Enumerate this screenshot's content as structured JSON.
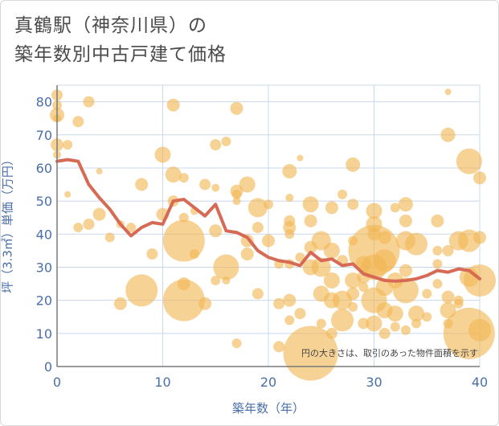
{
  "title_line1": "真鶴駅（神奈川県）の",
  "title_line2": "築年数別中古戸建て価格",
  "colors": {
    "bubble": "#f2b654",
    "line": "#d66a55",
    "grid": "#c9d8ec",
    "axis_text": "#4a6ea8"
  },
  "chart_data": {
    "type": "scatter",
    "xlabel": "築年数（年）",
    "ylabel": "坪（3.3㎡）単価（万円）",
    "xlim": [
      0,
      40
    ],
    "ylim": [
      0,
      85
    ],
    "xticks": [
      "0",
      "10",
      "20",
      "30",
      "40"
    ],
    "yticks": [
      "0",
      "10",
      "20",
      "30",
      "40",
      "50",
      "60",
      "70",
      "80"
    ],
    "note": "円の大きさは、取引のあった物件面積を示す",
    "line": {
      "x": [
        0,
        1,
        2,
        3,
        4,
        5,
        6,
        7,
        8,
        9,
        10,
        11,
        12,
        13,
        14,
        15,
        16,
        17,
        18,
        19,
        20,
        21,
        22,
        23,
        24,
        25,
        26,
        27,
        28,
        29,
        30,
        31,
        32,
        33,
        34,
        35,
        36,
        37,
        38,
        39,
        40
      ],
      "y": [
        62,
        62.5,
        62,
        55,
        51,
        47.5,
        43,
        39.5,
        42,
        43.5,
        43,
        50,
        50.5,
        48,
        45.5,
        49,
        41,
        40.5,
        39,
        35,
        33,
        32,
        31.5,
        30.5,
        34.5,
        32,
        32.5,
        30.5,
        31,
        28,
        27,
        26,
        25.8,
        26,
        26.5,
        27.5,
        29,
        28.5,
        29.5,
        29,
        26.5
      ]
    },
    "bubbles": [
      [
        0,
        82,
        7
      ],
      [
        0,
        79,
        6
      ],
      [
        0,
        76,
        9
      ],
      [
        0,
        75,
        5
      ],
      [
        0,
        67,
        8
      ],
      [
        0,
        64,
        5
      ],
      [
        1,
        67,
        6
      ],
      [
        1,
        52,
        4
      ],
      [
        2,
        74,
        7
      ],
      [
        2,
        42,
        6
      ],
      [
        3,
        80,
        7
      ],
      [
        3,
        43,
        7
      ],
      [
        4,
        59,
        4
      ],
      [
        4,
        46,
        8
      ],
      [
        5,
        39,
        6
      ],
      [
        6,
        19,
        8
      ],
      [
        6,
        43,
        5
      ],
      [
        7,
        42,
        6
      ],
      [
        8,
        55,
        8
      ],
      [
        8,
        23,
        20
      ],
      [
        9,
        34,
        7
      ],
      [
        10,
        46,
        8
      ],
      [
        10,
        64,
        10
      ],
      [
        11,
        79,
        8
      ],
      [
        11,
        58,
        10
      ],
      [
        11,
        50,
        7
      ],
      [
        12,
        38,
        26
      ],
      [
        12,
        20,
        26
      ],
      [
        12,
        25,
        8
      ],
      [
        12,
        57,
        6
      ],
      [
        12,
        45,
        6
      ],
      [
        13,
        34,
        6
      ],
      [
        13,
        47,
        5
      ],
      [
        14,
        55,
        7
      ],
      [
        14,
        19,
        8
      ],
      [
        15,
        67,
        7
      ],
      [
        15,
        41,
        8
      ],
      [
        15,
        26,
        6
      ],
      [
        15,
        54,
        5
      ],
      [
        16,
        68,
        6
      ],
      [
        16,
        30,
        16
      ],
      [
        16,
        26,
        5
      ],
      [
        17,
        78,
        8
      ],
      [
        17,
        53,
        8
      ],
      [
        17,
        52,
        6
      ],
      [
        17,
        50,
        5
      ],
      [
        17,
        7,
        6
      ],
      [
        18,
        55,
        10
      ],
      [
        18,
        34,
        8
      ],
      [
        18,
        38,
        8
      ],
      [
        19,
        48,
        12
      ],
      [
        19,
        42,
        7
      ],
      [
        19,
        22,
        7
      ],
      [
        20,
        49,
        6
      ],
      [
        20,
        38,
        8
      ],
      [
        21,
        31,
        6
      ],
      [
        21,
        19,
        7
      ],
      [
        21,
        6,
        7
      ],
      [
        22,
        59,
        9
      ],
      [
        22,
        51,
        5
      ],
      [
        22,
        44,
        7
      ],
      [
        22,
        42,
        8
      ],
      [
        22,
        40,
        6
      ],
      [
        22,
        31,
        6
      ],
      [
        22,
        20,
        8
      ],
      [
        22,
        14,
        6
      ],
      [
        23,
        16,
        7
      ],
      [
        23,
        33,
        6
      ],
      [
        23,
        63,
        4
      ],
      [
        24,
        49,
        10
      ],
      [
        24,
        44,
        8
      ],
      [
        24,
        36,
        8
      ],
      [
        24,
        30,
        10
      ],
      [
        24,
        4,
        34
      ],
      [
        25,
        38,
        12
      ],
      [
        25,
        30,
        12
      ],
      [
        25,
        22,
        10
      ],
      [
        25,
        13,
        6
      ],
      [
        26,
        48,
        8
      ],
      [
        26,
        35,
        10
      ],
      [
        26,
        26,
        10
      ],
      [
        26,
        20,
        10
      ],
      [
        26,
        10,
        7
      ],
      [
        27,
        52,
        6
      ],
      [
        27,
        32,
        7
      ],
      [
        27,
        20,
        12
      ],
      [
        27,
        14,
        14
      ],
      [
        28,
        49,
        7
      ],
      [
        28,
        61,
        9
      ],
      [
        28,
        38,
        6
      ],
      [
        28,
        26,
        10
      ],
      [
        28,
        22,
        8
      ],
      [
        28,
        18,
        6
      ],
      [
        29,
        31,
        10
      ],
      [
        29,
        27,
        8
      ],
      [
        29,
        24,
        6
      ],
      [
        29,
        13,
        7
      ],
      [
        30,
        47,
        10
      ],
      [
        30,
        43,
        10
      ],
      [
        30,
        40,
        8
      ],
      [
        30,
        35,
        32
      ],
      [
        30,
        30,
        16
      ],
      [
        30,
        20,
        16
      ],
      [
        30,
        13,
        10
      ],
      [
        31,
        39,
        8
      ],
      [
        31,
        32,
        14
      ],
      [
        31,
        24,
        11
      ],
      [
        31,
        17,
        10
      ],
      [
        31,
        10,
        7
      ],
      [
        32,
        48,
        6
      ],
      [
        32,
        26,
        10
      ],
      [
        32,
        16,
        10
      ],
      [
        32,
        12,
        6
      ],
      [
        33,
        49,
        9
      ],
      [
        33,
        44,
        8
      ],
      [
        33,
        38,
        12
      ],
      [
        33,
        29,
        8
      ],
      [
        33,
        23,
        16
      ],
      [
        33,
        11,
        6
      ],
      [
        34,
        37,
        14
      ],
      [
        34,
        16,
        10
      ],
      [
        34,
        13,
        6
      ],
      [
        35,
        22,
        6
      ],
      [
        35,
        15,
        6
      ],
      [
        36,
        35,
        6
      ],
      [
        36,
        44,
        8
      ],
      [
        36,
        31,
        6
      ],
      [
        36,
        25,
        6
      ],
      [
        37,
        70,
        9
      ],
      [
        37,
        83,
        4
      ],
      [
        37,
        35,
        7
      ],
      [
        37,
        21,
        8
      ],
      [
        37,
        17,
        10
      ],
      [
        37,
        13,
        6
      ],
      [
        38,
        38,
        12
      ],
      [
        38,
        20,
        6
      ],
      [
        38,
        19,
        6
      ],
      [
        39,
        62,
        16
      ],
      [
        39,
        38,
        14
      ],
      [
        39,
        27,
        12
      ],
      [
        39,
        10,
        32
      ],
      [
        40,
        57,
        8
      ],
      [
        40,
        11,
        14
      ],
      [
        40,
        26,
        20
      ],
      [
        40,
        39,
        8
      ]
    ]
  }
}
